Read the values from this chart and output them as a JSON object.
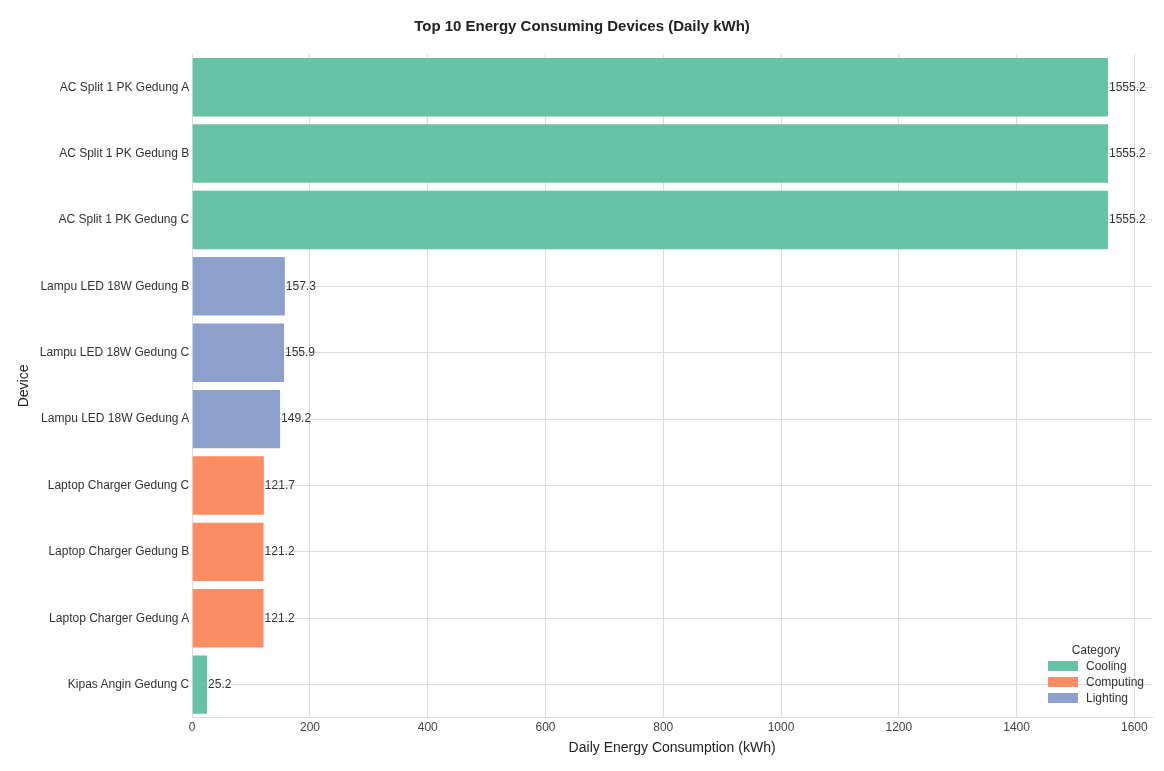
{
  "chart_data": {
    "type": "bar",
    "orientation": "horizontal",
    "title": "Top 10 Energy Consuming Devices (Daily kWh)",
    "xlabel": "Daily Energy Consumption (kWh)",
    "ylabel": "Device",
    "categories": [
      "AC Split 1 PK Gedung A",
      "AC Split 1 PK Gedung B",
      "AC Split 1 PK Gedung C",
      "Lampu LED 18W Gedung B",
      "Lampu LED 18W Gedung C",
      "Lampu LED 18W Gedung A",
      "Laptop Charger Gedung C",
      "Laptop Charger Gedung B",
      "Laptop Charger Gedung A",
      "Kipas Angin Gedung C"
    ],
    "series": [
      {
        "name": "Cooling",
        "color": "#66c2a5",
        "values": [
          1555.2,
          1555.2,
          1555.2,
          null,
          null,
          null,
          null,
          null,
          null,
          25.2
        ]
      },
      {
        "name": "Computing",
        "color": "#fc8d62",
        "values": [
          null,
          null,
          null,
          null,
          null,
          null,
          121.7,
          121.2,
          121.2,
          null
        ]
      },
      {
        "name": "Lighting",
        "color": "#8da0cb",
        "values": [
          null,
          null,
          null,
          157.3,
          155.9,
          149.2,
          null,
          null,
          null,
          null
        ]
      }
    ],
    "xlim": [
      0,
      1630
    ],
    "xticks": [
      0,
      200,
      400,
      600,
      800,
      1000,
      1200,
      1400,
      1600
    ],
    "grid": true,
    "legend": "bottom right",
    "legend_title": "Category",
    "data_labels": true
  }
}
